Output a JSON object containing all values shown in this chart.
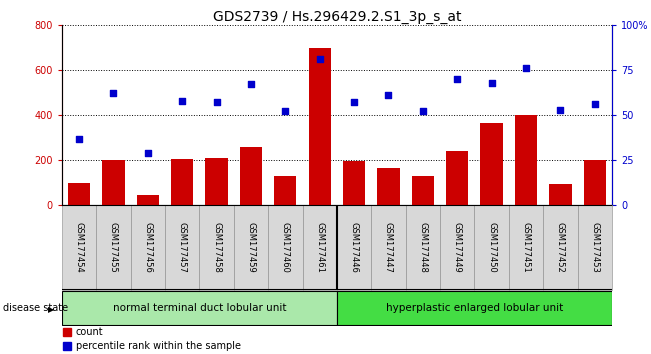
{
  "title": "GDS2739 / Hs.296429.2.S1_3p_s_at",
  "categories": [
    "GSM177454",
    "GSM177455",
    "GSM177456",
    "GSM177457",
    "GSM177458",
    "GSM177459",
    "GSM177460",
    "GSM177461",
    "GSM177446",
    "GSM177447",
    "GSM177448",
    "GSM177449",
    "GSM177450",
    "GSM177451",
    "GSM177452",
    "GSM177453"
  ],
  "bar_values": [
    100,
    200,
    45,
    205,
    210,
    260,
    130,
    695,
    195,
    165,
    130,
    240,
    365,
    400,
    95,
    200
  ],
  "scatter_values": [
    37,
    62,
    29,
    58,
    57,
    67,
    52,
    81,
    57,
    61,
    52,
    70,
    68,
    76,
    53,
    56
  ],
  "bar_color": "#cc0000",
  "scatter_color": "#0000cc",
  "ylim_left": [
    0,
    800
  ],
  "ylim_right": [
    0,
    100
  ],
  "yticks_left": [
    0,
    200,
    400,
    600,
    800
  ],
  "yticks_right": [
    0,
    25,
    50,
    75,
    100
  ],
  "ytick_labels_right": [
    "0",
    "25",
    "50",
    "75",
    "100%"
  ],
  "group1_label": "normal terminal duct lobular unit",
  "group2_label": "hyperplastic enlarged lobular unit",
  "group1_count": 8,
  "group2_count": 8,
  "disease_state_label": "disease state",
  "legend_bar_label": "count",
  "legend_scatter_label": "percentile rank within the sample",
  "group1_color": "#aae8aa",
  "group2_color": "#44dd44",
  "background_color": "#ffffff",
  "plot_bg_color": "#ffffff",
  "title_fontsize": 10,
  "tick_fontsize": 7,
  "label_fontsize": 7.5,
  "bar_label_fontsize": 6,
  "legend_fontsize": 7
}
